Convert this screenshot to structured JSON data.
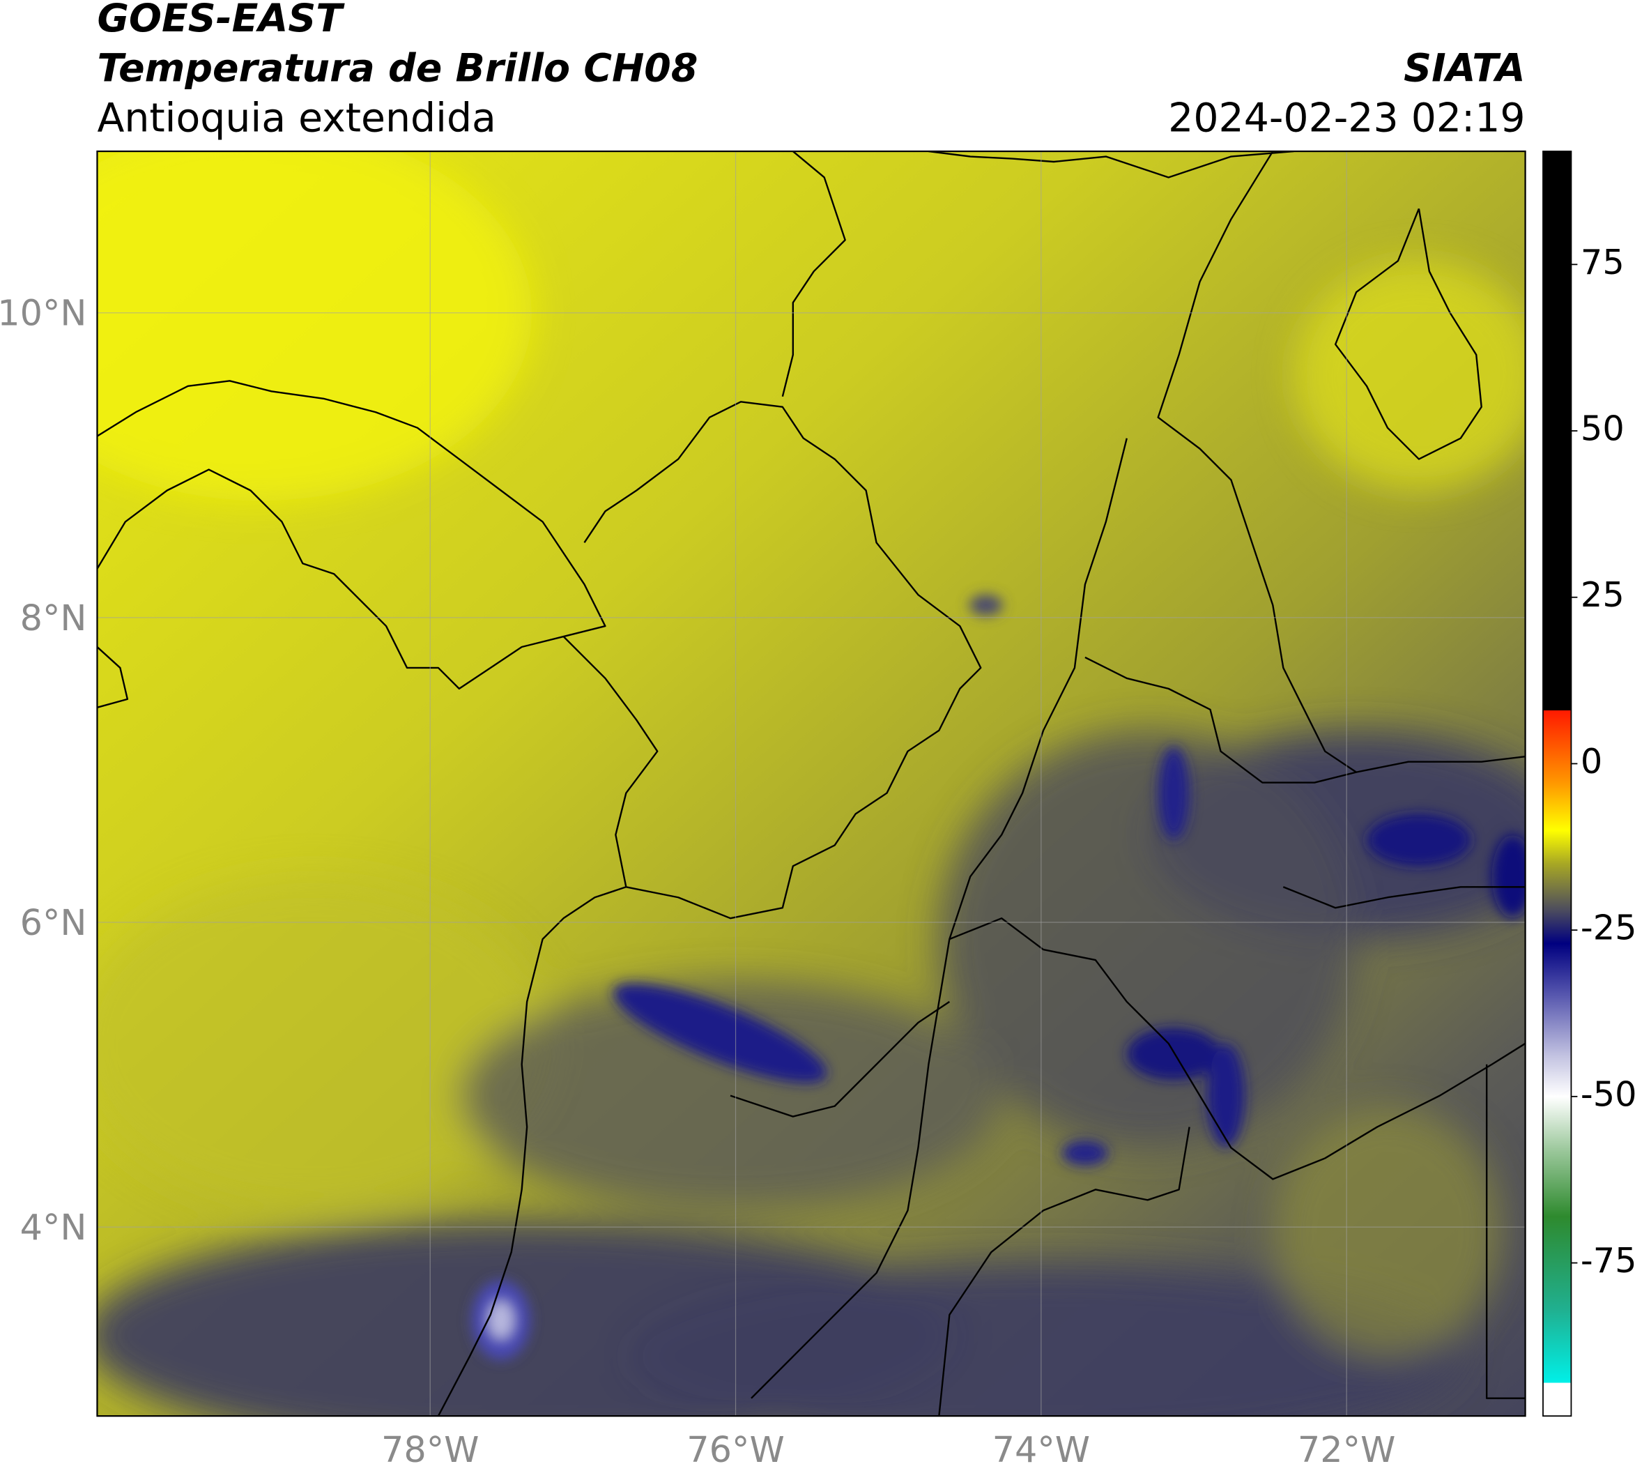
{
  "header": {
    "title": "GOES-EAST",
    "subtitle": "Temperatura de Brillo CH08",
    "region": "Antioquia extendida",
    "agency": "SIATA",
    "datetime": "2024-02-23 02:19"
  },
  "map": {
    "xlim": [
      -80.18,
      -70.83
    ],
    "ylim": [
      2.76,
      11.06
    ],
    "grid": true,
    "xticks": [
      {
        "value": -78,
        "label": "78°W"
      },
      {
        "value": -76,
        "label": "76°W"
      },
      {
        "value": -74,
        "label": "74°W"
      },
      {
        "value": -72,
        "label": "72°W"
      }
    ],
    "yticks": [
      {
        "value": 4,
        "label": "4°N"
      },
      {
        "value": 6,
        "label": "6°N"
      },
      {
        "value": 8,
        "label": "8°N"
      },
      {
        "value": 10,
        "label": "10°N"
      }
    ]
  },
  "colorbar": {
    "clim": [
      -98,
      92
    ],
    "ticks": [
      -75,
      -50,
      -25,
      0,
      25,
      50,
      75
    ],
    "colormap": [
      {
        "value": -98,
        "color": "#ffffff"
      },
      {
        "value": -93,
        "color": "#ffffff"
      },
      {
        "value": -93,
        "color": "#00f0e8"
      },
      {
        "value": -82,
        "color": "#20b090"
      },
      {
        "value": -68,
        "color": "#2e8a2e"
      },
      {
        "value": -58,
        "color": "#9cc89c"
      },
      {
        "value": -50,
        "color": "#ffffff"
      },
      {
        "value": -44,
        "color": "#c4c4e2"
      },
      {
        "value": -35,
        "color": "#5a5ab0"
      },
      {
        "value": -27,
        "color": "#000080"
      },
      {
        "value": -22,
        "color": "#4c4c5e"
      },
      {
        "value": -15,
        "color": "#a8a824"
      },
      {
        "value": -10,
        "color": "#ffff00"
      },
      {
        "value": -3,
        "color": "#ff9900"
      },
      {
        "value": 8,
        "color": "#ff1a00"
      },
      {
        "value": 8,
        "color": "#000000"
      },
      {
        "value": 92,
        "color": "#000000"
      }
    ]
  }
}
